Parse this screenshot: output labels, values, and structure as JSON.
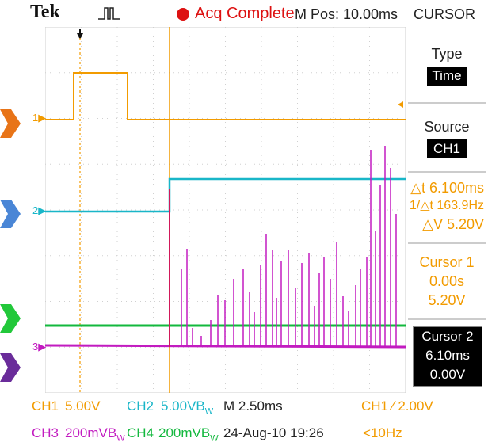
{
  "header": {
    "brand": "Tek",
    "acq_status": "Acq Complete",
    "m_pos": "M Pos: 10.00ms",
    "menu_title": "CURSOR"
  },
  "sidepanel": {
    "type_label": "Type",
    "type_value": "Time",
    "source_label": "Source",
    "source_value": "CH1",
    "delta_t": "△t 6.100ms",
    "inv_delta_t": "1/△t 163.9Hz",
    "delta_v": "△V 5.20V",
    "cursor1_label": "Cursor 1",
    "cursor1_time": "0.00s",
    "cursor1_volt": "5.20V",
    "cursor2_label": "Cursor 2",
    "cursor2_time": "6.10ms",
    "cursor2_volt": "0.00V"
  },
  "channel_markers": {
    "ch1": "1",
    "ch2": "2",
    "ch3": "3"
  },
  "bottom": {
    "ch1_label": "CH1",
    "ch1_scale": "5.00V",
    "ch2_label": "CH2",
    "ch2_scale": "5.00VB",
    "ch2_bw": "W",
    "timebase": "M 2.50ms",
    "trig_source": "CH1",
    "trig_slope": "∕",
    "trig_level": "2.00V",
    "ch3_label": "CH3",
    "ch3_scale": "200mVB",
    "ch3_bw": "W",
    "ch4_label": "CH4",
    "ch4_scale": "200mVB",
    "ch4_bw": "W",
    "datetime": "24-Aug-10 19:26",
    "freq": "<10Hz"
  },
  "colors": {
    "ch1": "#f29b00",
    "ch2": "#19b6c8",
    "ch3": "#c21bc0",
    "ch4": "#13b83e",
    "acq": "#dd1111"
  },
  "icons": {
    "trigger_mode": "pulse-trigger-icon",
    "trigger_position": "trigger-position-arrow-icon",
    "trigger_level": "trigger-level-arrow-icon"
  }
}
